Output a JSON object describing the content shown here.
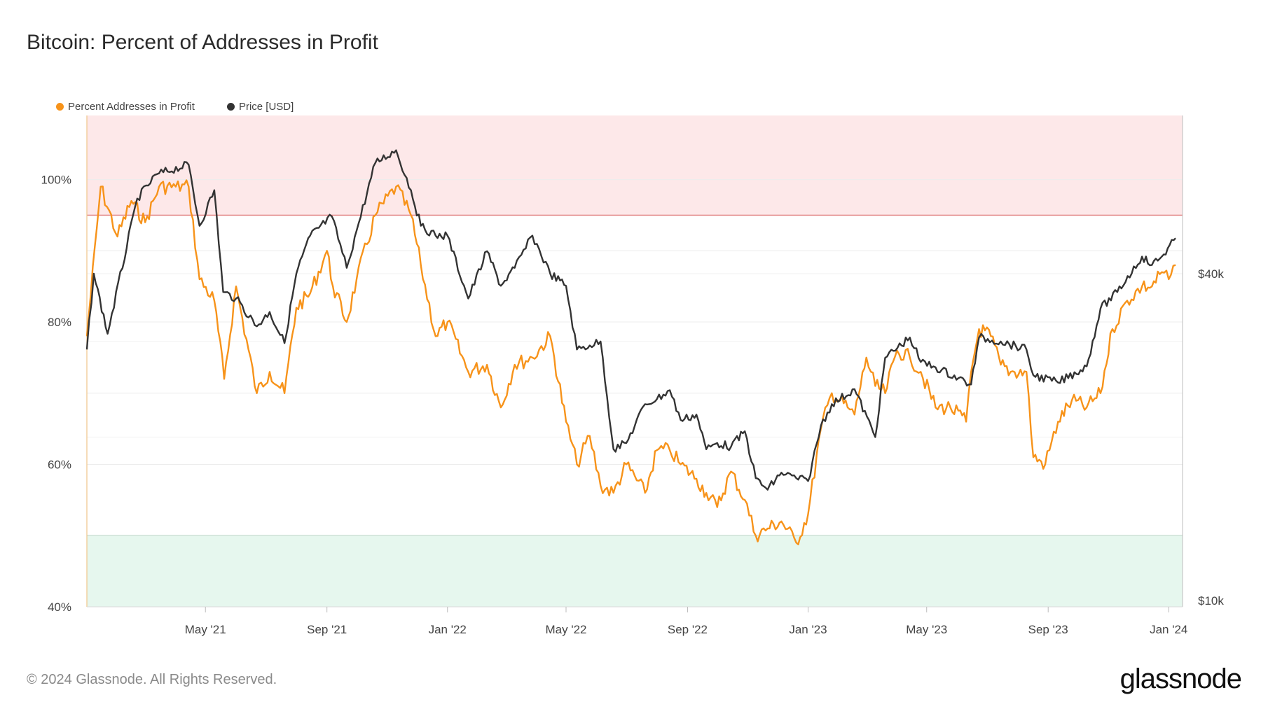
{
  "title": "Bitcoin: Percent of Addresses in Profit",
  "footer": "© 2024 Glassnode. All Rights Reserved.",
  "brand": "glassnode",
  "colors": {
    "profit": "#f7931a",
    "price": "#333333",
    "upper_band": "#fde8e9",
    "lower_band": "#e6f7ee",
    "upper_line": "#e07b7b",
    "lower_line": "#66bb8a"
  },
  "chart_data": {
    "type": "line",
    "title": "Bitcoin: Percent of Addresses in Profit",
    "x_ticks": [
      "May '21",
      "Sep '21",
      "Jan '22",
      "May '22",
      "Sep '22",
      "Jan '23",
      "May '23",
      "Sep '23",
      "Jan '24"
    ],
    "y_left_ticks": [
      "40%",
      "60%",
      "80%",
      "100%"
    ],
    "y_right_ticks": [
      "$10k",
      "$40k"
    ],
    "y_left_range": [
      40,
      109
    ],
    "y_right_scale": "log",
    "bands": [
      {
        "name": "upper",
        "from": 95,
        "to": 109
      },
      {
        "name": "lower",
        "from": 40,
        "to": 50
      }
    ],
    "legend_position": "top-left",
    "series": [
      {
        "name": "Percent Addresses in Profit",
        "axis": "left",
        "x": [
          "2021-01-01",
          "2021-01-15",
          "2021-02-01",
          "2021-02-15",
          "2021-03-01",
          "2021-03-15",
          "2021-04-01",
          "2021-04-14",
          "2021-04-25",
          "2021-05-10",
          "2021-05-20",
          "2021-06-01",
          "2021-06-22",
          "2021-07-05",
          "2021-07-20",
          "2021-08-01",
          "2021-08-15",
          "2021-09-01",
          "2021-09-07",
          "2021-09-21",
          "2021-10-01",
          "2021-10-20",
          "2021-11-10",
          "2021-11-25",
          "2021-12-05",
          "2021-12-20",
          "2022-01-01",
          "2022-01-22",
          "2022-02-10",
          "2022-02-24",
          "2022-03-10",
          "2022-03-28",
          "2022-04-15",
          "2022-05-01",
          "2022-05-12",
          "2022-05-25",
          "2022-06-05",
          "2022-06-18",
          "2022-07-01",
          "2022-07-20",
          "2022-08-01",
          "2022-08-14",
          "2022-08-25",
          "2022-09-10",
          "2022-09-20",
          "2022-10-01",
          "2022-10-15",
          "2022-10-29",
          "2022-11-09",
          "2022-11-21",
          "2022-12-05",
          "2022-12-20",
          "2023-01-01",
          "2023-01-14",
          "2023-01-25",
          "2023-02-10",
          "2023-02-17",
          "2023-03-01",
          "2023-03-10",
          "2023-03-20",
          "2023-04-01",
          "2023-04-14",
          "2023-04-25",
          "2023-05-10",
          "2023-05-25",
          "2023-06-10",
          "2023-06-15",
          "2023-06-23",
          "2023-07-05",
          "2023-07-15",
          "2023-07-25",
          "2023-08-10",
          "2023-08-17",
          "2023-08-29",
          "2023-09-11",
          "2023-09-25",
          "2023-10-10",
          "2023-10-24",
          "2023-11-05",
          "2023-11-20",
          "2023-12-05",
          "2023-12-15",
          "2023-12-25",
          "2024-01-01",
          "2024-01-08"
        ],
        "y": [
          78,
          99,
          92,
          97,
          94,
          99,
          99,
          99,
          86,
          83,
          72,
          85,
          70,
          73,
          70,
          82,
          84,
          90,
          85,
          80,
          86,
          95,
          99,
          95,
          88,
          78,
          80,
          73,
          74,
          68,
          74,
          75,
          78,
          66,
          60,
          64,
          57,
          56,
          60,
          56,
          62,
          62,
          60,
          58,
          56,
          54,
          59,
          55,
          50,
          51,
          52,
          49,
          53,
          65,
          70,
          68,
          67,
          75,
          71,
          70,
          76,
          75,
          73,
          68,
          68,
          66,
          73,
          79,
          78,
          74,
          73,
          73,
          61,
          60,
          66,
          69,
          68,
          70,
          79,
          83,
          85,
          85,
          87,
          86,
          88
        ]
      },
      {
        "name": "Price [USD]",
        "axis": "right",
        "x": [
          "2021-01-01",
          "2021-01-08",
          "2021-01-22",
          "2021-02-21",
          "2021-03-13",
          "2021-04-14",
          "2021-04-25",
          "2021-05-10",
          "2021-05-19",
          "2021-06-01",
          "2021-06-22",
          "2021-07-05",
          "2021-07-20",
          "2021-08-01",
          "2021-08-15",
          "2021-09-06",
          "2021-09-21",
          "2021-10-01",
          "2021-10-20",
          "2021-11-10",
          "2021-11-25",
          "2021-12-05",
          "2021-12-20",
          "2022-01-01",
          "2022-01-22",
          "2022-02-10",
          "2022-02-24",
          "2022-03-10",
          "2022-03-28",
          "2022-04-15",
          "2022-05-01",
          "2022-05-12",
          "2022-05-25",
          "2022-06-05",
          "2022-06-18",
          "2022-07-01",
          "2022-07-20",
          "2022-08-01",
          "2022-08-14",
          "2022-08-25",
          "2022-09-10",
          "2022-09-20",
          "2022-10-01",
          "2022-10-15",
          "2022-10-29",
          "2022-11-09",
          "2022-11-21",
          "2022-12-05",
          "2022-12-20",
          "2023-01-01",
          "2023-01-14",
          "2023-01-25",
          "2023-02-17",
          "2023-03-10",
          "2023-03-20",
          "2023-04-14",
          "2023-04-25",
          "2023-05-10",
          "2023-06-15",
          "2023-06-23",
          "2023-07-15",
          "2023-08-10",
          "2023-08-17",
          "2023-09-11",
          "2023-10-10",
          "2023-10-24",
          "2023-11-10",
          "2023-12-05",
          "2023-12-15",
          "2023-12-25",
          "2024-01-08"
        ],
        "y": [
          29000,
          40000,
          31000,
          55000,
          61000,
          63500,
          49000,
          57000,
          37000,
          36000,
          32000,
          34000,
          29800,
          40000,
          47000,
          51000,
          41000,
          48000,
          64000,
          67500,
          57000,
          49000,
          47000,
          47000,
          36000,
          44000,
          38000,
          41000,
          47000,
          40000,
          38000,
          29000,
          29500,
          30000,
          19000,
          19500,
          23000,
          23500,
          24400,
          21500,
          22000,
          19000,
          19500,
          19200,
          20500,
          16800,
          16000,
          17200,
          16800,
          16600,
          21000,
          23000,
          24500,
          20000,
          28000,
          30500,
          27500,
          26900,
          25000,
          30500,
          30000,
          29000,
          26000,
          25200,
          27000,
          34500,
          37000,
          43000,
          41500,
          43000,
          46500
        ]
      }
    ]
  }
}
